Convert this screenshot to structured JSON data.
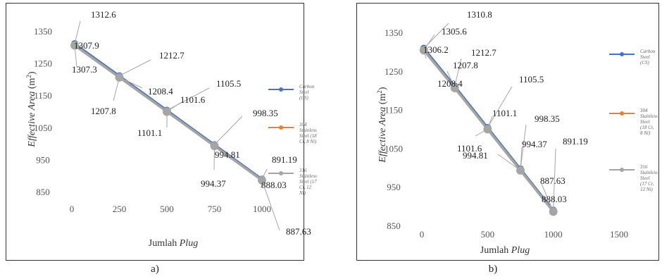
{
  "chart_data": [
    {
      "type": "line",
      "panel_label": "a)",
      "xlabel": "Jumlah",
      "xlabel_italic": "Plug",
      "ylabel": "Effective Area",
      "ylabel_unit": "(m",
      "ylabel_sup": "2",
      "ylabel_close": ")",
      "xlim": [
        0,
        1000
      ],
      "ylim": [
        850,
        1350
      ],
      "xticks": [
        "0",
        "250",
        "500",
        "750",
        "1000"
      ],
      "yticks": [
        "1350",
        "1250",
        "1150",
        "1050",
        "950",
        "850"
      ],
      "series": [
        {
          "name": "Carbon Steel (CS)",
          "color": "#4472C4",
          "x": [
            15,
            250,
            500,
            750,
            1000
          ],
          "y": [
            1312.6,
            1212.7,
            1105.5,
            998.35,
            891.19
          ]
        },
        {
          "name": "304 Stainless Steel (18 Cr, 8 Ni)",
          "color": "#ED7D31",
          "x": [
            15,
            250,
            500,
            750,
            1000
          ],
          "y": [
            1307.9,
            1208.4,
            1101.6,
            994.81,
            888.03
          ]
        },
        {
          "name": "316 Stainless Steel (17 Cr, 12 Ni)",
          "color": "#A5A5A5",
          "x": [
            15,
            250,
            500,
            750,
            1000
          ],
          "y": [
            1307.3,
            1207.8,
            1101.1,
            994.37,
            887.63
          ]
        }
      ],
      "data_labels": [
        "1312.6",
        "1307.9",
        "1307.3",
        "1212.7",
        "1208.4",
        "1207.8",
        "1105.5",
        "1101.6",
        "1101.1",
        "998.35",
        "994.81",
        "994.37",
        "891.19",
        "888.03",
        "887.63"
      ]
    },
    {
      "type": "line",
      "panel_label": "b)",
      "xlabel": "Jumlah",
      "xlabel_italic": "Plug",
      "ylabel": "Effective Area",
      "ylabel_unit": "(m",
      "ylabel_sup": "2",
      "ylabel_close": ")",
      "xlim": [
        0,
        1500
      ],
      "ylim": [
        850,
        1350
      ],
      "xticks": [
        "0",
        "500",
        "1000",
        "1500"
      ],
      "yticks": [
        "1350",
        "1250",
        "1150",
        "1050",
        "950",
        "850"
      ],
      "series": [
        {
          "name": "Carbon Steel (CS)",
          "color": "#4472C4",
          "x": [
            15,
            250,
            500,
            750,
            1000
          ],
          "y": [
            1310.8,
            1212.7,
            1105.5,
            998.35,
            891.19
          ]
        },
        {
          "name": "304 Stainless Steel (18 Cr, 8 Ni)",
          "color": "#ED7D31",
          "x": [
            15,
            250,
            500,
            750,
            1000
          ],
          "y": [
            1306.2,
            1208.4,
            1101.6,
            994.81,
            888.03
          ]
        },
        {
          "name": "316 Stainless Steel (17 Cr, 12 Ni)",
          "color": "#A5A5A5",
          "x": [
            15,
            250,
            500,
            750,
            1000
          ],
          "y": [
            1305.6,
            1207.8,
            1101.1,
            994.37,
            887.63
          ]
        }
      ],
      "data_labels": [
        "1310.8",
        "1305.6",
        "1306.2",
        "1212.7",
        "1207.8",
        "1208.4",
        "1105.5",
        "1101.1",
        "1101.6",
        "998.35",
        "994.37",
        "994.81",
        "891.19",
        "887.63",
        "888.03"
      ]
    }
  ]
}
